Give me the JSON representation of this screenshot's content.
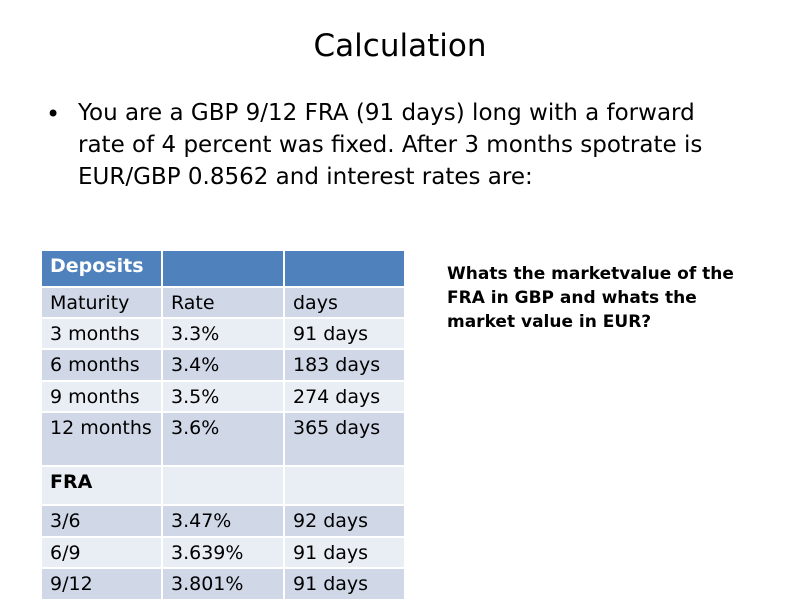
{
  "title": "Calculation",
  "bullet": "You are a GBP 9/12 FRA (91 days) long with a forward rate of 4 percent was fixed. After 3 months spotrate is EUR/GBP 0.8562 and interest rates are:",
  "question": "Whats the marketvalue of the FRA in GBP and whats the market value in EUR?",
  "table": {
    "header": "Deposits",
    "rows": [
      [
        "Maturity",
        "Rate",
        "days"
      ],
      [
        "3 months",
        "3.3%",
        "91 days"
      ],
      [
        "6 months",
        "3.4%",
        "183 days"
      ],
      [
        "9 months",
        "3.5%",
        "274 days"
      ],
      [
        "12 months",
        "3.6%",
        "365 days"
      ],
      [
        "FRA"
      ],
      [
        "3/6",
        "3.47%",
        "92 days"
      ],
      [
        "6/9",
        "3.639%",
        "91 days"
      ],
      [
        "9/12",
        "3.801%",
        "91 days"
      ]
    ]
  }
}
